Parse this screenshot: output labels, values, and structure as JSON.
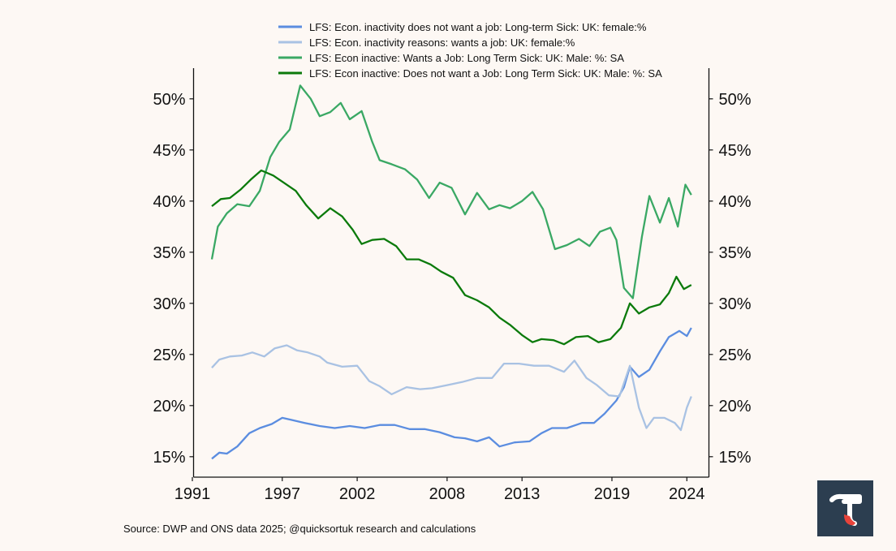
{
  "colors": {
    "background": "#fdf8f4",
    "female_not_want": "#5b8de0",
    "female_wants": "#a9c2e3",
    "male_wants": "#3aa864",
    "male_not_want": "#0b7a0b",
    "logo_bg": "#2c3e50",
    "logo_accent": "#e8433a"
  },
  "source": "Source: DWP and ONS data 2025; @quicksortuk research and calculations",
  "logo": {
    "icon": "tau-icon"
  },
  "chart_data": {
    "type": "line",
    "title": "",
    "xlabel": "",
    "ylabel": "",
    "xlim": [
      1991,
      2025.5
    ],
    "ylim": [
      13,
      53
    ],
    "x_ticks": [
      1991,
      1997,
      2002,
      2008,
      2013,
      2019,
      2024
    ],
    "y_ticks": [
      15,
      20,
      25,
      30,
      35,
      40,
      45,
      50
    ],
    "y_tick_labels": [
      "15%",
      "20%",
      "25%",
      "30%",
      "35%",
      "40%",
      "45%",
      "50%"
    ],
    "legend_position": "top",
    "grid": false,
    "series": [
      {
        "name": "LFS: Econ. inactivity does not want a job: Long-term Sick: UK: female:%",
        "color_key": "female_not_want",
        "points": [
          [
            1992.3,
            14.8
          ],
          [
            1992.8,
            15.4
          ],
          [
            1993.3,
            15.3
          ],
          [
            1994,
            16.0
          ],
          [
            1994.8,
            17.3
          ],
          [
            1995.5,
            17.8
          ],
          [
            1996.3,
            18.2
          ],
          [
            1997,
            18.8
          ],
          [
            1997.6,
            18.6
          ],
          [
            1998.5,
            18.3
          ],
          [
            1999.5,
            18.0
          ],
          [
            2000.5,
            17.8
          ],
          [
            2001.5,
            18.0
          ],
          [
            2002.5,
            17.8
          ],
          [
            2003.5,
            18.1
          ],
          [
            2004.5,
            18.1
          ],
          [
            2005.5,
            17.7
          ],
          [
            2006.5,
            17.7
          ],
          [
            2007.5,
            17.4
          ],
          [
            2008.5,
            16.9
          ],
          [
            2009.2,
            16.8
          ],
          [
            2010,
            16.5
          ],
          [
            2010.8,
            16.9
          ],
          [
            2011.5,
            16.0
          ],
          [
            2012.5,
            16.4
          ],
          [
            2013.5,
            16.5
          ],
          [
            2014.3,
            17.3
          ],
          [
            2015,
            17.8
          ],
          [
            2016,
            17.8
          ],
          [
            2017,
            18.3
          ],
          [
            2017.8,
            18.3
          ],
          [
            2018.5,
            19.2
          ],
          [
            2019.3,
            20.5
          ],
          [
            2019.8,
            21.8
          ],
          [
            2020.2,
            23.8
          ],
          [
            2020.8,
            22.8
          ],
          [
            2021.5,
            23.5
          ],
          [
            2022.2,
            25.3
          ],
          [
            2022.8,
            26.7
          ],
          [
            2023.5,
            27.3
          ],
          [
            2024,
            26.8
          ],
          [
            2024.3,
            27.6
          ]
        ]
      },
      {
        "name": "LFS: Econ. inactivity reasons: wants a job: UK: female:%",
        "color_key": "female_wants",
        "points": [
          [
            1992.3,
            23.7
          ],
          [
            1992.8,
            24.5
          ],
          [
            1993.5,
            24.8
          ],
          [
            1994.3,
            24.9
          ],
          [
            1995,
            25.2
          ],
          [
            1995.8,
            24.8
          ],
          [
            1996.5,
            25.6
          ],
          [
            1997.3,
            25.9
          ],
          [
            1998,
            25.4
          ],
          [
            1998.7,
            25.2
          ],
          [
            1999.5,
            24.8
          ],
          [
            2000,
            24.2
          ],
          [
            2001,
            23.8
          ],
          [
            2002,
            23.9
          ],
          [
            2002.8,
            22.4
          ],
          [
            2003.5,
            21.9
          ],
          [
            2004.3,
            21.1
          ],
          [
            2005.3,
            21.8
          ],
          [
            2006.2,
            21.6
          ],
          [
            2007,
            21.7
          ],
          [
            2008,
            22.0
          ],
          [
            2009,
            22.3
          ],
          [
            2010,
            22.7
          ],
          [
            2011,
            22.7
          ],
          [
            2011.8,
            24.1
          ],
          [
            2012.8,
            24.1
          ],
          [
            2013.8,
            23.9
          ],
          [
            2014.8,
            23.9
          ],
          [
            2015.8,
            23.3
          ],
          [
            2016.5,
            24.4
          ],
          [
            2017.3,
            22.7
          ],
          [
            2018,
            22.0
          ],
          [
            2018.8,
            21.0
          ],
          [
            2019.5,
            20.9
          ],
          [
            2020.2,
            23.9
          ],
          [
            2020.8,
            19.8
          ],
          [
            2021.3,
            17.8
          ],
          [
            2021.8,
            18.8
          ],
          [
            2022.5,
            18.8
          ],
          [
            2023.2,
            18.3
          ],
          [
            2023.6,
            17.6
          ],
          [
            2024,
            19.8
          ],
          [
            2024.3,
            20.9
          ]
        ]
      },
      {
        "name": "LFS: Econ inactive: Wants a Job: Long Term Sick: UK: Male: %: SA",
        "color_key": "male_wants",
        "points": [
          [
            1992.3,
            34.3
          ],
          [
            1992.7,
            37.5
          ],
          [
            1993.3,
            38.8
          ],
          [
            1994,
            39.7
          ],
          [
            1994.8,
            39.5
          ],
          [
            1995.5,
            41.0
          ],
          [
            1996.2,
            44.3
          ],
          [
            1996.8,
            45.8
          ],
          [
            1997.5,
            47.0
          ],
          [
            1998.2,
            51.3
          ],
          [
            1998.9,
            50.0
          ],
          [
            1999.5,
            48.3
          ],
          [
            2000.2,
            48.7
          ],
          [
            2000.9,
            49.6
          ],
          [
            2001.5,
            48.0
          ],
          [
            2002.3,
            48.8
          ],
          [
            2003,
            45.8
          ],
          [
            2003.5,
            44.0
          ],
          [
            2004.3,
            43.6
          ],
          [
            2005.2,
            43.1
          ],
          [
            2006,
            42.1
          ],
          [
            2006.8,
            40.3
          ],
          [
            2007.5,
            41.8
          ],
          [
            2008.3,
            41.3
          ],
          [
            2009.2,
            38.7
          ],
          [
            2010,
            40.8
          ],
          [
            2010.8,
            39.2
          ],
          [
            2011.5,
            39.6
          ],
          [
            2012.2,
            39.3
          ],
          [
            2013,
            40.0
          ],
          [
            2013.7,
            40.9
          ],
          [
            2014.4,
            39.2
          ],
          [
            2015.2,
            35.3
          ],
          [
            2016,
            35.7
          ],
          [
            2016.8,
            36.3
          ],
          [
            2017.5,
            35.6
          ],
          [
            2018.2,
            37.0
          ],
          [
            2018.9,
            37.4
          ],
          [
            2019.3,
            36.2
          ],
          [
            2019.8,
            31.5
          ],
          [
            2020.4,
            30.5
          ],
          [
            2021,
            36.5
          ],
          [
            2021.5,
            40.5
          ],
          [
            2022.2,
            37.9
          ],
          [
            2022.8,
            40.3
          ],
          [
            2023.4,
            37.5
          ],
          [
            2023.9,
            41.6
          ],
          [
            2024.3,
            40.6
          ]
        ]
      },
      {
        "name": "LFS: Econ inactive: Does not want a Job: Long Term Sick: UK: Male: %: SA",
        "color_key": "male_not_want",
        "points": [
          [
            1992.3,
            39.5
          ],
          [
            1992.9,
            40.2
          ],
          [
            1993.5,
            40.3
          ],
          [
            1994.2,
            41.1
          ],
          [
            1994.9,
            42.1
          ],
          [
            1995.6,
            43.0
          ],
          [
            1996.4,
            42.5
          ],
          [
            1997.1,
            41.8
          ],
          [
            1997.9,
            41.0
          ],
          [
            1998.6,
            39.6
          ],
          [
            1999.4,
            38.3
          ],
          [
            2000.2,
            39.3
          ],
          [
            2001,
            38.5
          ],
          [
            2001.7,
            37.2
          ],
          [
            2002.3,
            35.8
          ],
          [
            2003,
            36.2
          ],
          [
            2003.8,
            36.3
          ],
          [
            2004.6,
            35.6
          ],
          [
            2005.3,
            34.3
          ],
          [
            2006.1,
            34.3
          ],
          [
            2006.9,
            33.8
          ],
          [
            2007.6,
            33.1
          ],
          [
            2008.4,
            32.5
          ],
          [
            2009.2,
            30.8
          ],
          [
            2010,
            30.3
          ],
          [
            2010.8,
            29.6
          ],
          [
            2011.5,
            28.6
          ],
          [
            2012.2,
            27.9
          ],
          [
            2013,
            26.9
          ],
          [
            2013.7,
            26.2
          ],
          [
            2014.3,
            26.5
          ],
          [
            2015.1,
            26.4
          ],
          [
            2015.8,
            26.0
          ],
          [
            2016.6,
            26.7
          ],
          [
            2017.4,
            26.8
          ],
          [
            2018.1,
            26.2
          ],
          [
            2018.9,
            26.5
          ],
          [
            2019.6,
            27.6
          ],
          [
            2020.2,
            30.0
          ],
          [
            2020.8,
            29.0
          ],
          [
            2021.5,
            29.6
          ],
          [
            2022.2,
            29.9
          ],
          [
            2022.8,
            31.0
          ],
          [
            2023.3,
            32.6
          ],
          [
            2023.8,
            31.4
          ],
          [
            2024.3,
            31.8
          ]
        ]
      }
    ]
  }
}
